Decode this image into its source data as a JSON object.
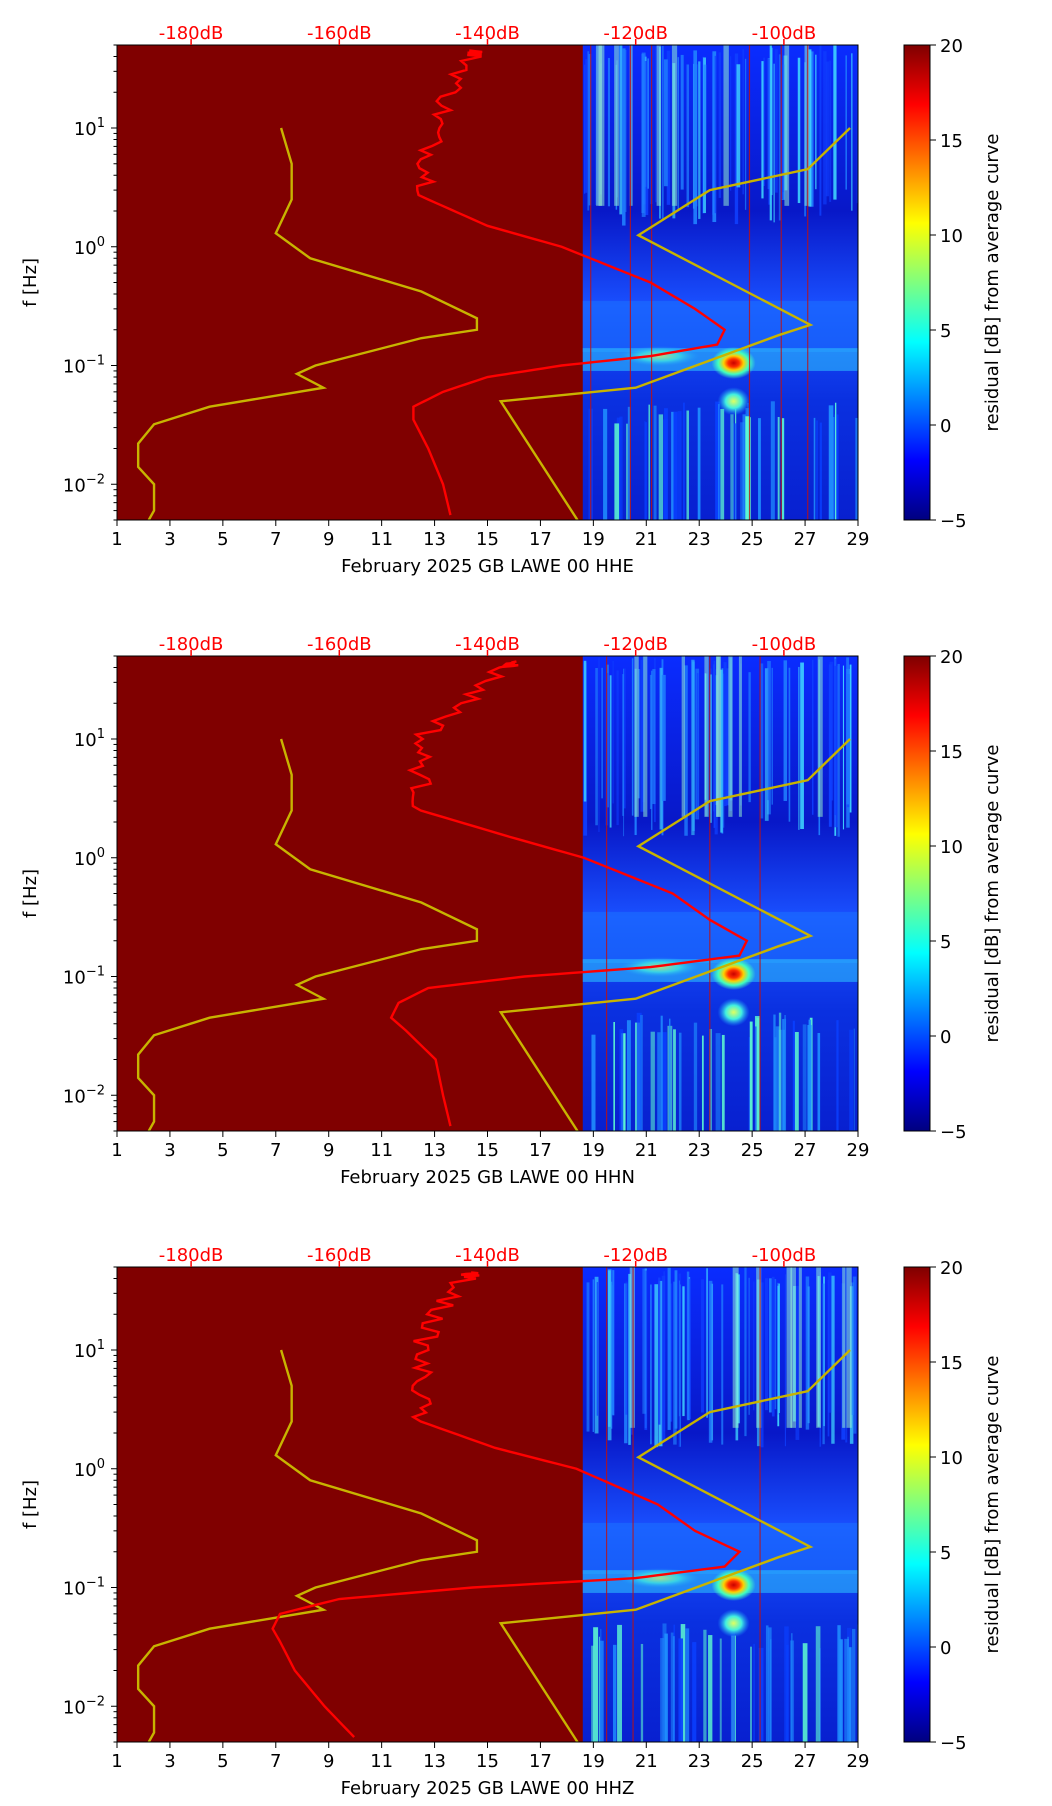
{
  "colors": {
    "background_fill": "#800000",
    "psd_curve": "#ff0000",
    "noise_model_curve": "#c8b400",
    "top_axis_text": "#ff0000",
    "colormap": [
      "#00007f",
      "#0000ff",
      "#007fff",
      "#00ffff",
      "#7fff7f",
      "#ffff00",
      "#ff7f00",
      "#ff0000",
      "#7f0000"
    ]
  },
  "chart_data": [
    {
      "type": "heatmap",
      "channel": "HHE",
      "xlabel": "February 2025 GB LAWE 00 HHE",
      "ylabel": "f [Hz]",
      "x_ticks": [
        "1",
        "3",
        "5",
        "7",
        "9",
        "11",
        "13",
        "15",
        "17",
        "19",
        "21",
        "23",
        "25",
        "27",
        "29"
      ],
      "xlim": [
        1,
        29
      ],
      "ylim": [
        0.005,
        50
      ],
      "y_ticks": [
        {
          "base": "10",
          "exp": "1"
        },
        {
          "base": "10",
          "exp": "0"
        },
        {
          "base": "10",
          "exp": "−1"
        },
        {
          "base": "10",
          "exp": "−2"
        }
      ],
      "top_axis_ticks": [
        "-180dB",
        "-160dB",
        "-140dB",
        "-120dB",
        "-100dB"
      ],
      "top_axis_range_db": [
        -190,
        -90
      ],
      "data_starts_day": 18.6,
      "colorbar": {
        "label": "residual [dB] from average curve",
        "ticks": [
          "20",
          "15",
          "10",
          "5",
          "0",
          "−5"
        ],
        "range": [
          -5,
          20
        ]
      },
      "red_day_markers": [
        18.9,
        20.4,
        21.2,
        24.9,
        26.1,
        27.1
      ],
      "psd_curve_db_vs_freq": [
        [
          45,
          -141
        ],
        [
          40,
          -142
        ],
        [
          20,
          -145
        ],
        [
          10,
          -147
        ],
        [
          5,
          -148
        ],
        [
          2.5,
          -148
        ],
        [
          1.5,
          -140
        ],
        [
          1.0,
          -130
        ],
        [
          0.5,
          -118
        ],
        [
          0.3,
          -112
        ],
        [
          0.2,
          -108
        ],
        [
          0.15,
          -109
        ],
        [
          0.12,
          -118
        ],
        [
          0.1,
          -130
        ],
        [
          0.08,
          -140
        ],
        [
          0.06,
          -146
        ],
        [
          0.045,
          -150
        ],
        [
          0.035,
          -150
        ],
        [
          0.02,
          -148
        ],
        [
          0.01,
          -146
        ],
        [
          0.0055,
          -145
        ]
      ],
      "noise_model_curve_day_vs_freq": [
        [
          7.2,
          10
        ],
        [
          7.6,
          5
        ],
        [
          7.6,
          2.5
        ],
        [
          7.0,
          1.3
        ],
        [
          8.3,
          0.8
        ],
        [
          12.5,
          0.42
        ],
        [
          14.6,
          0.25
        ],
        [
          14.6,
          0.2
        ],
        [
          12.5,
          0.17
        ],
        [
          8.5,
          0.1
        ],
        [
          7.8,
          0.085
        ],
        [
          8.8,
          0.065
        ],
        [
          4.5,
          0.045
        ],
        [
          2.4,
          0.032
        ],
        [
          1.8,
          0.022
        ],
        [
          1.8,
          0.014
        ],
        [
          2.4,
          0.01
        ],
        [
          2.4,
          0.006
        ],
        [
          2.2,
          0.005
        ]
      ],
      "noise_model_high_day_vs_freq": [
        [
          28.7,
          10
        ],
        [
          27.1,
          4.5
        ],
        [
          23.4,
          3
        ],
        [
          20.7,
          1.25
        ],
        [
          27.2,
          0.22
        ],
        [
          26.0,
          0.18
        ],
        [
          20.6,
          0.065
        ],
        [
          15.5,
          0.05
        ],
        [
          18.4,
          0.005
        ]
      ]
    },
    {
      "type": "heatmap",
      "channel": "HHN",
      "xlabel": "February 2025 GB LAWE 00 HHN",
      "ylabel": "f [Hz]",
      "x_ticks": [
        "1",
        "3",
        "5",
        "7",
        "9",
        "11",
        "13",
        "15",
        "17",
        "19",
        "21",
        "23",
        "25",
        "27",
        "29"
      ],
      "xlim": [
        1,
        29
      ],
      "ylim": [
        0.005,
        50
      ],
      "y_ticks": [
        {
          "base": "10",
          "exp": "1"
        },
        {
          "base": "10",
          "exp": "0"
        },
        {
          "base": "10",
          "exp": "−1"
        },
        {
          "base": "10",
          "exp": "−2"
        }
      ],
      "top_axis_ticks": [
        "-180dB",
        "-160dB",
        "-140dB",
        "-120dB",
        "-100dB"
      ],
      "top_axis_range_db": [
        -190,
        -90
      ],
      "data_starts_day": 18.6,
      "colorbar": {
        "label": "residual [dB] from average curve",
        "ticks": [
          "20",
          "15",
          "10",
          "5",
          "0",
          "−5"
        ],
        "range": [
          -5,
          20
        ]
      },
      "red_day_markers": [
        19.5,
        23.4,
        25.3
      ],
      "psd_curve_db_vs_freq": [
        [
          45,
          -135
        ],
        [
          40,
          -138
        ],
        [
          20,
          -143
        ],
        [
          10,
          -149
        ],
        [
          5,
          -149
        ],
        [
          2.5,
          -149
        ],
        [
          1.5,
          -137
        ],
        [
          1.0,
          -127
        ],
        [
          0.5,
          -115
        ],
        [
          0.3,
          -110
        ],
        [
          0.2,
          -105
        ],
        [
          0.15,
          -106
        ],
        [
          0.12,
          -118
        ],
        [
          0.1,
          -135
        ],
        [
          0.08,
          -148
        ],
        [
          0.06,
          -152
        ],
        [
          0.045,
          -153
        ],
        [
          0.035,
          -151
        ],
        [
          0.02,
          -147
        ],
        [
          0.01,
          -146
        ],
        [
          0.0055,
          -145
        ]
      ],
      "noise_model_curve_day_vs_freq": [
        [
          7.2,
          10
        ],
        [
          7.6,
          5
        ],
        [
          7.6,
          2.5
        ],
        [
          7.0,
          1.3
        ],
        [
          8.3,
          0.8
        ],
        [
          12.5,
          0.42
        ],
        [
          14.6,
          0.25
        ],
        [
          14.6,
          0.2
        ],
        [
          12.5,
          0.17
        ],
        [
          8.5,
          0.1
        ],
        [
          7.8,
          0.085
        ],
        [
          8.8,
          0.065
        ],
        [
          4.5,
          0.045
        ],
        [
          2.4,
          0.032
        ],
        [
          1.8,
          0.022
        ],
        [
          1.8,
          0.014
        ],
        [
          2.4,
          0.01
        ],
        [
          2.4,
          0.006
        ],
        [
          2.2,
          0.005
        ]
      ],
      "noise_model_high_day_vs_freq": [
        [
          28.7,
          10
        ],
        [
          27.1,
          4.5
        ],
        [
          23.4,
          3
        ],
        [
          20.7,
          1.25
        ],
        [
          27.2,
          0.22
        ],
        [
          26.0,
          0.18
        ],
        [
          20.6,
          0.065
        ],
        [
          15.5,
          0.05
        ],
        [
          18.4,
          0.005
        ]
      ]
    },
    {
      "type": "heatmap",
      "channel": "HHZ",
      "xlabel": "February 2025 GB LAWE 00 HHZ",
      "ylabel": "f [Hz]",
      "x_ticks": [
        "1",
        "3",
        "5",
        "7",
        "9",
        "11",
        "13",
        "15",
        "17",
        "19",
        "21",
        "23",
        "25",
        "27",
        "29"
      ],
      "xlim": [
        1,
        29
      ],
      "ylim": [
        0.005,
        50
      ],
      "y_ticks": [
        {
          "base": "10",
          "exp": "1"
        },
        {
          "base": "10",
          "exp": "0"
        },
        {
          "base": "10",
          "exp": "−1"
        },
        {
          "base": "10",
          "exp": "−2"
        }
      ],
      "top_axis_ticks": [
        "-180dB",
        "-160dB",
        "-140dB",
        "-120dB",
        "-100dB"
      ],
      "top_axis_range_db": [
        -190,
        -90
      ],
      "data_starts_day": 18.6,
      "colorbar": {
        "label": "residual [dB] from average curve",
        "ticks": [
          "20",
          "15",
          "10",
          "5",
          "0",
          "−5"
        ],
        "range": [
          -5,
          20
        ]
      },
      "red_day_markers": [
        19.5,
        20.5,
        25.3
      ],
      "psd_curve_db_vs_freq": [
        [
          45,
          -142
        ],
        [
          40,
          -143
        ],
        [
          20,
          -147
        ],
        [
          10,
          -149
        ],
        [
          5,
          -149
        ],
        [
          2.5,
          -149
        ],
        [
          1.5,
          -139
        ],
        [
          1.0,
          -128
        ],
        [
          0.5,
          -117
        ],
        [
          0.3,
          -112
        ],
        [
          0.2,
          -106
        ],
        [
          0.15,
          -108
        ],
        [
          0.12,
          -120
        ],
        [
          0.1,
          -142
        ],
        [
          0.08,
          -160
        ],
        [
          0.06,
          -168
        ],
        [
          0.045,
          -169
        ],
        [
          0.035,
          -168
        ],
        [
          0.02,
          -166
        ],
        [
          0.01,
          -162
        ],
        [
          0.0055,
          -158
        ]
      ],
      "noise_model_curve_day_vs_freq": [
        [
          7.2,
          10
        ],
        [
          7.6,
          5
        ],
        [
          7.6,
          2.5
        ],
        [
          7.0,
          1.3
        ],
        [
          8.3,
          0.8
        ],
        [
          12.5,
          0.42
        ],
        [
          14.6,
          0.25
        ],
        [
          14.6,
          0.2
        ],
        [
          12.5,
          0.17
        ],
        [
          8.5,
          0.1
        ],
        [
          7.8,
          0.085
        ],
        [
          8.8,
          0.065
        ],
        [
          4.5,
          0.045
        ],
        [
          2.4,
          0.032
        ],
        [
          1.8,
          0.022
        ],
        [
          1.8,
          0.014
        ],
        [
          2.4,
          0.01
        ],
        [
          2.4,
          0.006
        ],
        [
          2.2,
          0.005
        ]
      ],
      "noise_model_high_day_vs_freq": [
        [
          28.7,
          10
        ],
        [
          27.1,
          4.5
        ],
        [
          23.4,
          3
        ],
        [
          20.7,
          1.25
        ],
        [
          27.2,
          0.22
        ],
        [
          26.0,
          0.18
        ],
        [
          20.6,
          0.065
        ],
        [
          15.5,
          0.05
        ],
        [
          18.4,
          0.005
        ]
      ]
    }
  ]
}
